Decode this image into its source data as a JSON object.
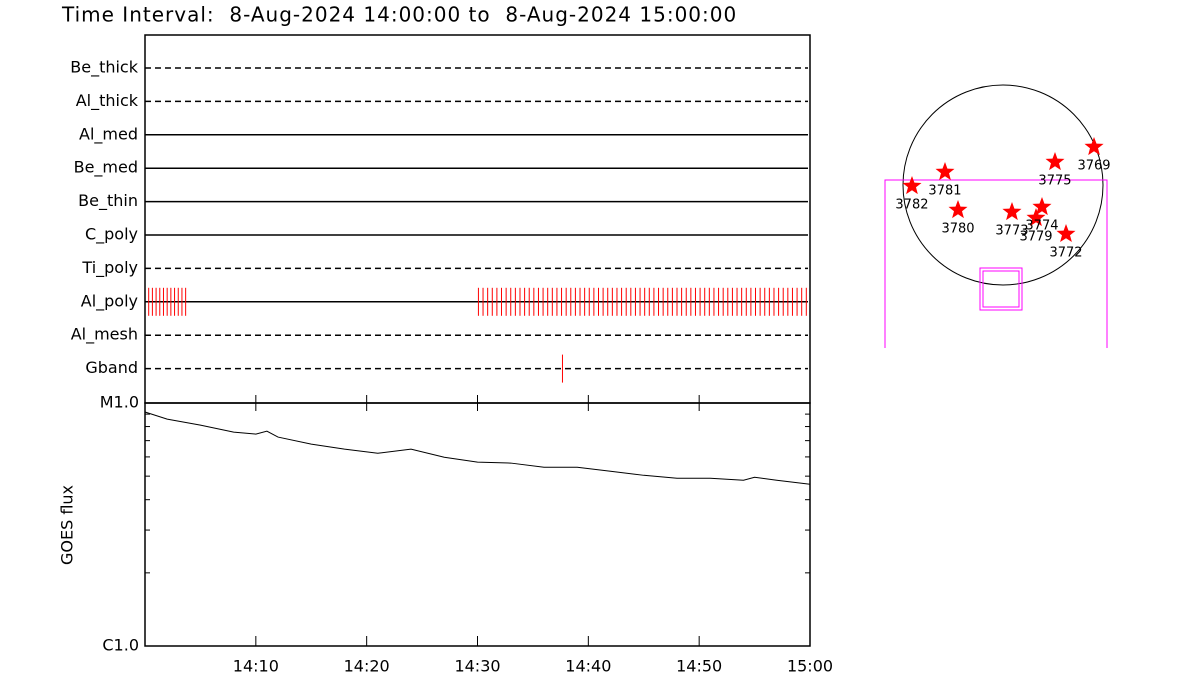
{
  "chart_data": [
    {
      "type": "timeline",
      "title": "Time Interval:  8-Aug-2024 14:00:00 to  8-Aug-2024 15:00:00",
      "xlim": [
        "14:00",
        "15:00"
      ],
      "color": "#ff0000",
      "filters": [
        {
          "name": "Be_thick",
          "line": "dashed",
          "obs": []
        },
        {
          "name": "Al_thick",
          "line": "dashed",
          "obs": []
        },
        {
          "name": "Al_med",
          "line": "solid",
          "obs": []
        },
        {
          "name": "Be_med",
          "line": "solid",
          "obs": []
        },
        {
          "name": "Be_thin",
          "line": "solid",
          "obs": []
        },
        {
          "name": "C_poly",
          "line": "solid",
          "obs": []
        },
        {
          "name": "Ti_poly",
          "line": "dashed",
          "obs": []
        },
        {
          "name": "Al_poly",
          "line": "solid",
          "obs": [
            "14:00:20",
            "14:00:40",
            "14:01:00",
            "14:01:20",
            "14:01:40",
            "14:02:00",
            "14:02:20",
            "14:02:40",
            "14:03:00",
            "14:03:20",
            "14:03:40",
            "14:30:05",
            "14:30:30",
            "14:30:55",
            "14:31:20",
            "14:31:45",
            "14:32:10",
            "14:32:35",
            "14:33:00",
            "14:33:25",
            "14:33:50",
            "14:34:15",
            "14:34:40",
            "14:35:05",
            "14:35:30",
            "14:35:55",
            "14:36:20",
            "14:36:45",
            "14:37:10",
            "14:37:35",
            "14:38:00",
            "14:38:25",
            "14:38:50",
            "14:39:15",
            "14:39:40",
            "14:40:05",
            "14:40:30",
            "14:40:55",
            "14:41:20",
            "14:41:45",
            "14:42:10",
            "14:42:35",
            "14:43:00",
            "14:43:25",
            "14:43:50",
            "14:44:15",
            "14:44:40",
            "14:45:05",
            "14:45:30",
            "14:45:55",
            "14:46:20",
            "14:46:45",
            "14:47:10",
            "14:47:35",
            "14:48:00",
            "14:48:25",
            "14:48:50",
            "14:49:15",
            "14:49:40",
            "14:50:05",
            "14:50:30",
            "14:50:55",
            "14:51:20",
            "14:51:45",
            "14:52:10",
            "14:52:35",
            "14:53:00",
            "14:53:25",
            "14:53:50",
            "14:54:15",
            "14:54:40",
            "14:55:05",
            "14:55:30",
            "14:55:55",
            "14:56:20",
            "14:56:45",
            "14:57:10",
            "14:57:35",
            "14:58:00",
            "14:58:25",
            "14:58:50",
            "14:59:15",
            "14:59:40"
          ]
        },
        {
          "name": "Al_mesh",
          "line": "dashed",
          "obs": []
        },
        {
          "name": "Gband",
          "line": "dashed",
          "obs": [
            "14:37:40"
          ]
        }
      ]
    },
    {
      "type": "line",
      "ylabel": "GOES flux",
      "log_scale": true,
      "x": [
        "14:00",
        "14:02",
        "14:05",
        "14:08",
        "14:10",
        "14:11",
        "14:12",
        "14:15",
        "14:18",
        "14:21",
        "14:24",
        "14:27",
        "14:30",
        "14:33",
        "14:36",
        "14:39",
        "14:42",
        "14:45",
        "14:48",
        "14:51",
        "14:54",
        "14:55",
        "14:57",
        "15:00"
      ],
      "values": [
        9.18e-06,
        8.58e-06,
        8.11e-06,
        7.59e-06,
        7.45e-06,
        7.66e-06,
        7.24e-06,
        6.77e-06,
        6.46e-06,
        6.21e-06,
        6.46e-06,
        5.98e-06,
        5.71e-06,
        5.66e-06,
        5.44e-06,
        5.44e-06,
        5.24e-06,
        5.04e-06,
        4.9e-06,
        4.9e-06,
        4.81e-06,
        4.95e-06,
        4.81e-06,
        4.63e-06
      ],
      "color": "#000000",
      "xlim": [
        "14:00",
        "15:00"
      ],
      "xticks": [
        "14:10",
        "14:20",
        "14:30",
        "14:40",
        "14:50",
        "15:00"
      ],
      "ylim": [
        1e-06,
        1e-05
      ],
      "yticks": [
        {
          "value": 1e-06,
          "label": "C1.0"
        },
        {
          "value": 1e-05,
          "label": "M1.0"
        }
      ],
      "yminor": [
        2e-06,
        3e-06,
        4e-06,
        5e-06,
        6e-06,
        7e-06,
        8e-06,
        9e-06
      ]
    },
    {
      "type": "scatter",
      "color": "#ff0000",
      "labels": [
        "3782",
        "3781",
        "3780",
        "3773",
        "3779",
        "3774",
        "3772",
        "3775",
        "3769"
      ],
      "x": [
        -874,
        -557,
        -432,
        86,
        317,
        374,
        605,
        499,
        874
      ],
      "y": [
        -10,
        125,
        -240,
        -259,
        -317,
        -211,
        -470,
        221,
        365
      ]
    }
  ]
}
